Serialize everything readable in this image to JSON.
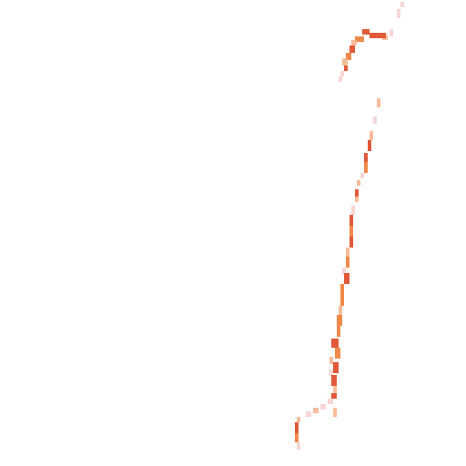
{
  "scene": {
    "background": "#ffffff",
    "stroke": {
      "palette": {
        "dark": "#e05a3a",
        "mid": "#f08a4a",
        "light": "#f7b08a",
        "faint": "#f5c4c4"
      }
    }
  }
}
